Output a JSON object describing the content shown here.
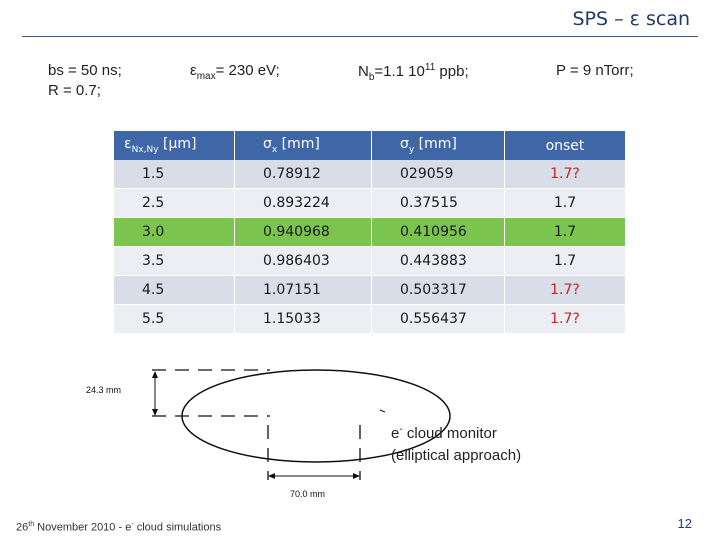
{
  "header": {
    "title": "SPS – ε scan"
  },
  "params": {
    "bs": "bs = 50 ns;",
    "r": "R = 0.7;",
    "emax_pre": "ε",
    "emax_sub": "max",
    "emax_val": "= 230  eV;",
    "nb_pre": "N",
    "nb_sub": "b",
    "nb_val": "=1.1 10",
    "nb_sup": "11",
    "nb_unit": " ppb;",
    "pressure": "P = 9 nTorr;"
  },
  "table": {
    "headers": {
      "c1_pre": "ε",
      "c1_sub": "Nx,Ny",
      "c1_unit": " [µm]",
      "c2_pre": "σ",
      "c2_sub": "x",
      "c2_unit": " [mm]",
      "c3_pre": "σ",
      "c3_sub": "y",
      "c3_unit": " [mm]",
      "c4": "onset"
    },
    "rows": [
      {
        "eps": "1.5",
        "sx": "0.78912",
        "sy": "029059",
        "onset": "1.7?"
      },
      {
        "eps": "2.5",
        "sx": "0.893224",
        "sy": "0.37515",
        "onset": "1.7"
      },
      {
        "eps": "3.0",
        "sx": "0.940968",
        "sy": "0.410956",
        "onset": "1.7"
      },
      {
        "eps": "3.5",
        "sx": "0.986403",
        "sy": "0.443883",
        "onset": "1.7"
      },
      {
        "eps": "4.5",
        "sx": "1.07151",
        "sy": "0.503317",
        "onset": "1.7?"
      },
      {
        "eps": "5.5",
        "sx": "1.15033",
        "sy": "0.556437",
        "onset": "1.7?"
      }
    ]
  },
  "diagram": {
    "height_label": "24.3 mm",
    "width_label": "70.0 mm",
    "monitor_pre": "e",
    "monitor_sup": "-",
    "monitor_line1": " cloud monitor",
    "monitor_line2": "(elliptical approach)"
  },
  "footer": {
    "date_pre": "26",
    "date_sup": "th",
    "date_post": " November 2010  -  e",
    "e_sup": "-",
    "text_post": " cloud simulations",
    "page": "12"
  },
  "colors": {
    "header_fill": "#3f66a6",
    "highlight_row": "#7bc44e",
    "onset_uncertain": "#d21e1e",
    "title": "#1f3a6b"
  }
}
